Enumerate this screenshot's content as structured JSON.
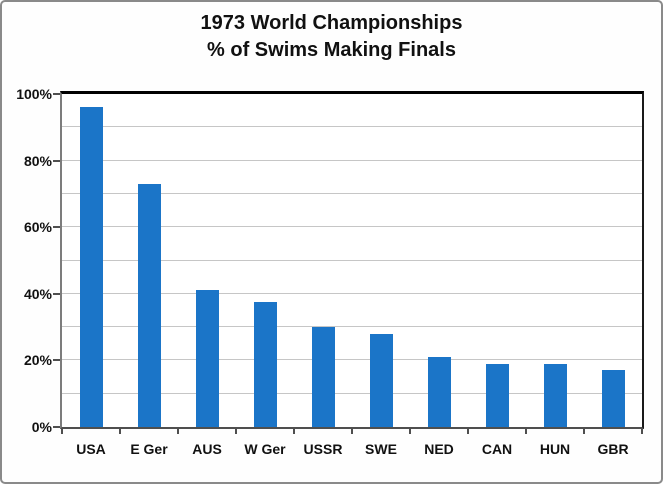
{
  "window": {
    "background": "#ffffff",
    "outer_border_color": "#8a8a8a"
  },
  "chart_data": {
    "type": "bar",
    "title": "1973 World Championships",
    "subtitle": "% of Swims Making Finals",
    "categories": [
      "USA",
      "E Ger",
      "AUS",
      "W Ger",
      "USSR",
      "SWE",
      "NED",
      "CAN",
      "HUN",
      "GBR"
    ],
    "values": [
      96,
      73,
      41,
      37.5,
      30,
      28,
      21,
      19,
      19,
      17
    ],
    "xlabel": "",
    "ylabel": "",
    "ylim": [
      0,
      100
    ],
    "yticks": [
      0,
      20,
      40,
      60,
      80,
      100
    ],
    "ytick_labels": [
      "0%",
      "20%",
      "40%",
      "60%",
      "80%",
      "100%"
    ],
    "minor_grid_step": 10,
    "grid": true,
    "legend_position": "none",
    "bar_color": "#1b75c8",
    "grid_color": "#c6c6c6",
    "axis_color": "#4f4f4f",
    "frame_color": "#000000",
    "text_color": "#111111"
  }
}
